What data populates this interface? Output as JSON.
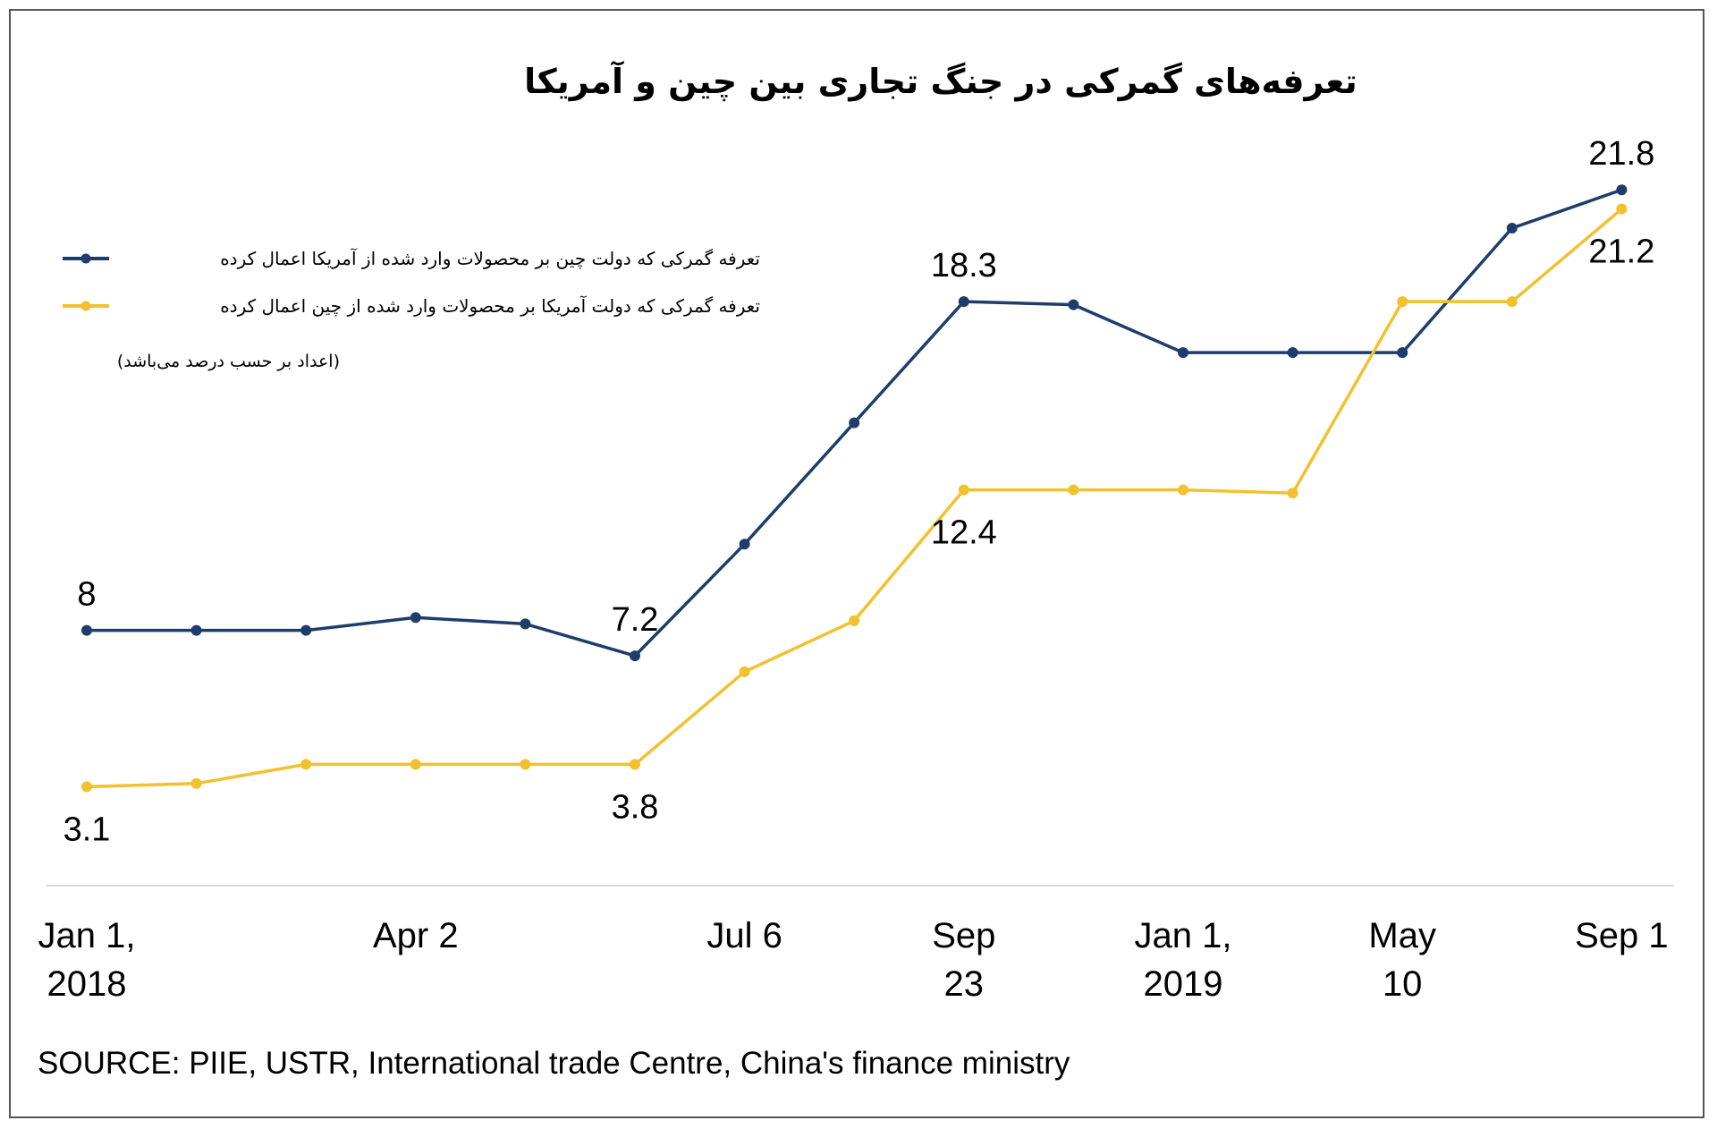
{
  "chart_data": {
    "type": "line",
    "title": "تعرفه‌های گمرکی در جنگ تجاری بین چین و آمریکا",
    "note": "(اعداد بر حسب درصد می‌باشد)",
    "source": "SOURCE: PIIE, USTR, International trade Centre, China's finance ministry",
    "x_tick_labels": [
      {
        "index": 0,
        "lines": [
          "Jan 1,",
          "2018"
        ]
      },
      {
        "index": 3,
        "lines": [
          "Apr 2"
        ]
      },
      {
        "index": 6,
        "lines": [
          "Jul 6"
        ]
      },
      {
        "index": 8,
        "lines": [
          "Sep",
          "23"
        ]
      },
      {
        "index": 10,
        "lines": [
          "Jan 1,",
          "2019"
        ]
      },
      {
        "index": 12,
        "lines": [
          "May",
          "10"
        ]
      },
      {
        "index": 14,
        "lines": [
          "Sep 1"
        ]
      }
    ],
    "ylim": [
      0,
      25
    ],
    "grid": false,
    "legend_position": "top-left",
    "series": [
      {
        "name": "تعرفه گمرکی که دولت چین بر محصولات وارد شده از آمریکا اعمال کرده",
        "color": "#1f3d6b",
        "values": [
          8.0,
          8.0,
          8.0,
          8.4,
          8.2,
          7.2,
          10.7,
          14.5,
          18.3,
          18.2,
          16.7,
          16.7,
          16.7,
          20.6,
          21.8
        ],
        "data_labels": [
          {
            "index": 0,
            "text": "8",
            "position": "above"
          },
          {
            "index": 5,
            "text": "7.2",
            "position": "above"
          },
          {
            "index": 8,
            "text": "18.3",
            "position": "above"
          },
          {
            "index": 14,
            "text": "21.8",
            "position": "above"
          }
        ]
      },
      {
        "name": "تعرفه گمرکی که دولت آمریکا بر محصولات وارد شده از چین اعمال کرده",
        "color": "#f2c12e",
        "values": [
          3.1,
          3.2,
          3.8,
          3.8,
          3.8,
          3.8,
          6.7,
          8.3,
          12.4,
          12.4,
          12.4,
          12.3,
          18.3,
          18.3,
          21.2
        ],
        "data_labels": [
          {
            "index": 0,
            "text": "3.1",
            "position": "below"
          },
          {
            "index": 5,
            "text": "3.8",
            "position": "below"
          },
          {
            "index": 8,
            "text": "12.4",
            "position": "below"
          },
          {
            "index": 14,
            "text": "21.2",
            "position": "below"
          }
        ]
      }
    ]
  }
}
